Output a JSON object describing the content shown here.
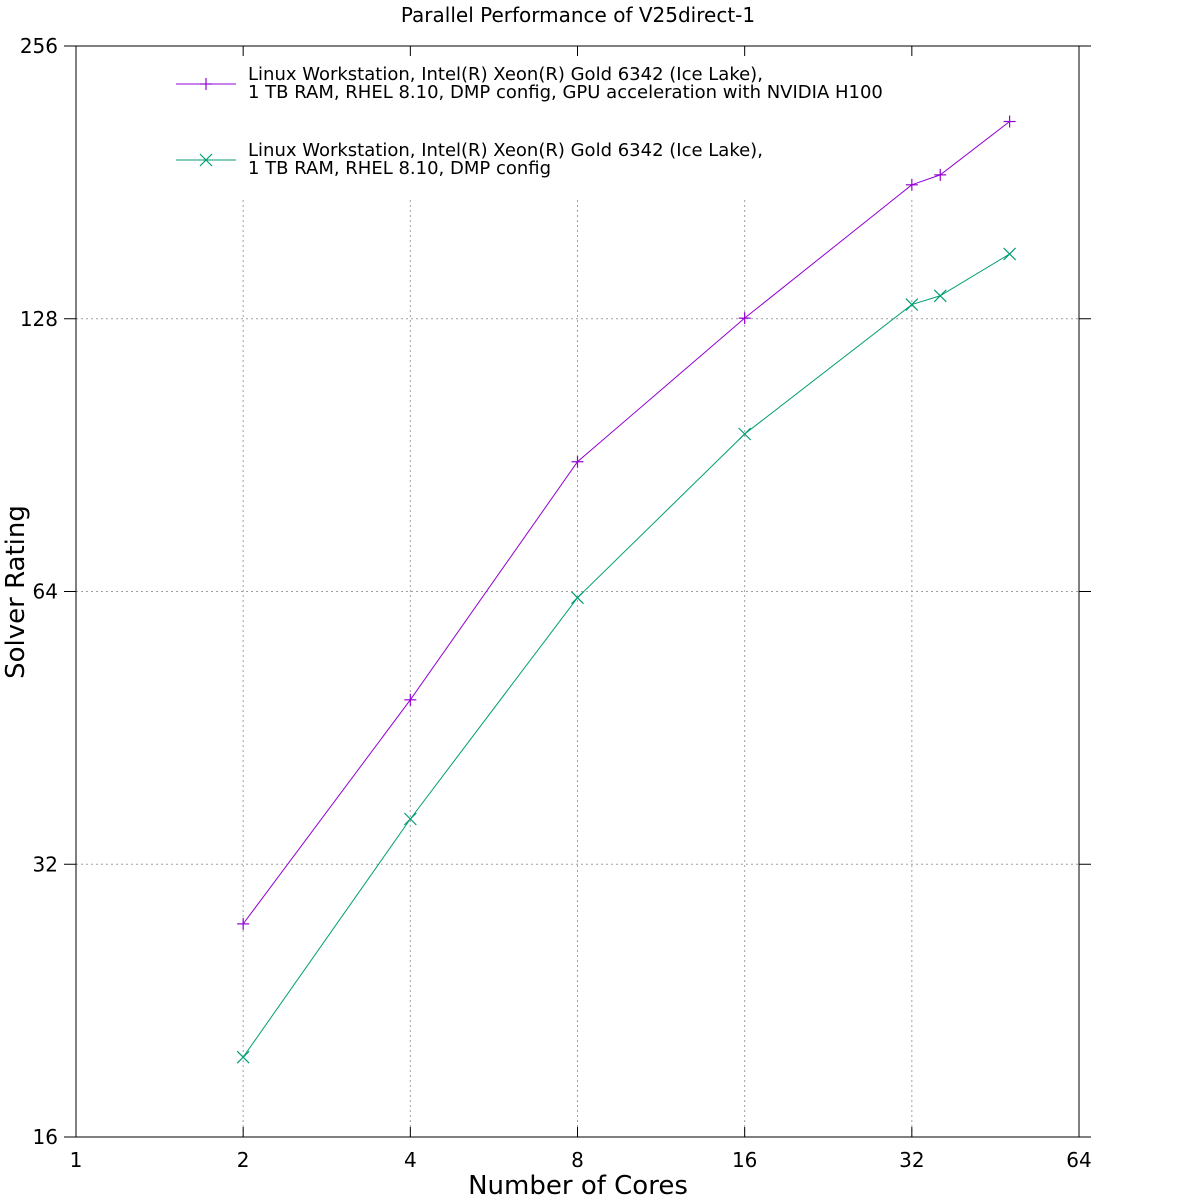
{
  "chart_data": {
    "type": "line",
    "title": "Parallel Performance of V25direct-1",
    "xlabel": "Number of Cores",
    "ylabel": "Solver Rating",
    "x_scale": "log2",
    "y_scale": "log2",
    "xlim": [
      1,
      64
    ],
    "ylim": [
      16,
      256
    ],
    "xticks": [
      "1",
      "2",
      "4",
      "8",
      "16",
      "32",
      "64"
    ],
    "yticks": [
      "16",
      "32",
      "64",
      "128",
      "256"
    ],
    "grid": true,
    "legend_position": "top-left",
    "series": [
      {
        "name": "Linux Workstation, Intel(R) Xeon(R) Gold 6342 (Ice Lake),\n1 TB RAM, RHEL 8.10, DMP config, GPU acceleration with NVIDIA H100",
        "marker": "plus",
        "color": "#9400d3",
        "x": [
          2,
          4,
          8,
          16,
          32,
          36,
          48
        ],
        "y": [
          27.5,
          48.6,
          89.0,
          128.2,
          179.9,
          184.5,
          211.3
        ]
      },
      {
        "name": "Linux Workstation, Intel(R) Xeon(R) Gold 6342 (Ice Lake),\n1 TB RAM, RHEL 8.10, DMP config",
        "marker": "cross",
        "color": "#009e73",
        "x": [
          2,
          4,
          8,
          16,
          32,
          36,
          48
        ],
        "y": [
          19.6,
          35.9,
          63.0,
          95.5,
          132.7,
          135.7,
          150.9
        ]
      }
    ]
  }
}
